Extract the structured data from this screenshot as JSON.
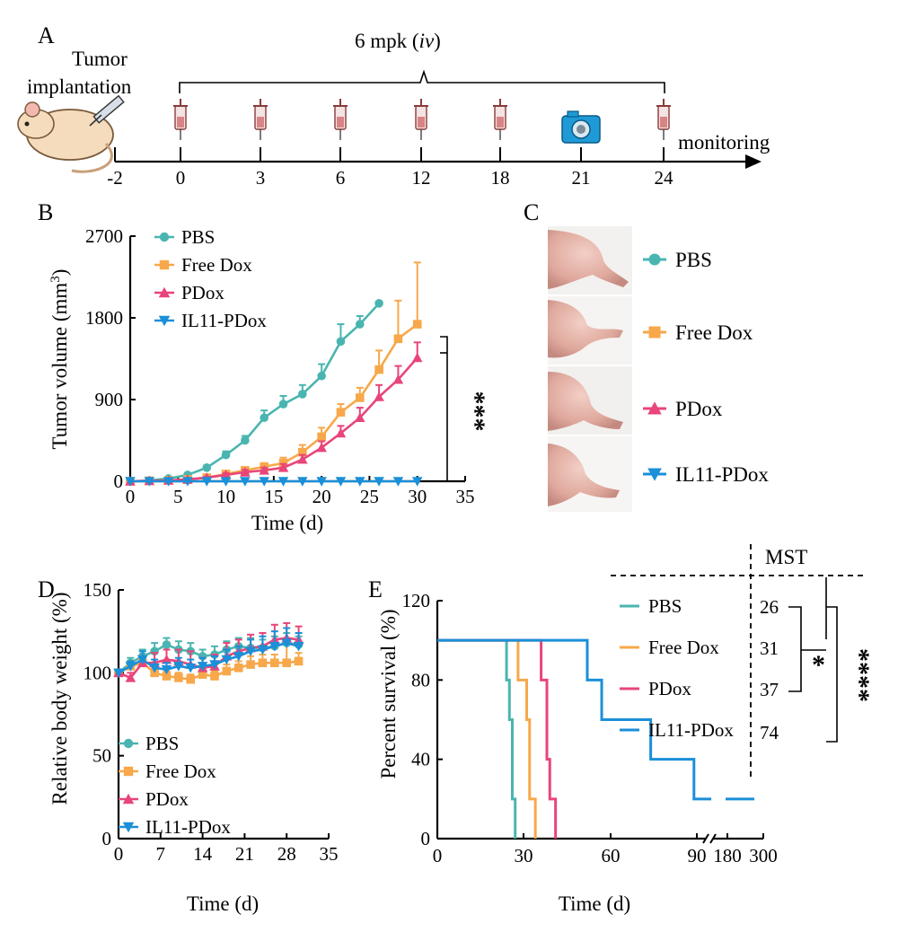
{
  "colors": {
    "PBS": "#4ab5b0",
    "Free Dox": "#f7a84a",
    "PDox": "#e8457a",
    "IL11-PDox": "#1b8fd8"
  },
  "icons": [
    "mouse-illustration",
    "syringe-icon",
    "camera-icon",
    "tumor-photo"
  ],
  "panel_a": {
    "letter": "A",
    "left_label_1": "Tumor",
    "left_label_2": "implantation",
    "dose_label_prefix": "6 mpk (",
    "dose_label_route": "iv",
    "dose_label_suffix": ")",
    "end_label": "monitoring",
    "timeline_days": [
      "-2",
      "0",
      "3",
      "6",
      "12",
      "18",
      "21",
      "24"
    ],
    "injection_days": [
      "0",
      "3",
      "6",
      "12",
      "18",
      "24"
    ],
    "imaging_day": "21"
  },
  "panel_c": {
    "letter": "C",
    "legend": [
      "PBS",
      "Free Dox",
      "PDox",
      "IL11-PDox"
    ]
  },
  "significance": {
    "panel_b": "***",
    "panel_e_left": "*",
    "panel_e_right": "****"
  },
  "chart_data": [
    {
      "panel": "B",
      "type": "line",
      "xlabel": "Time (d)",
      "ylabel": "Tumor volume (mm3)",
      "ylabel_main": "Tumor volume (mm",
      "ylabel_sup": "3",
      "ylabel_end": ")",
      "xlim": [
        0,
        35
      ],
      "ylim": [
        0,
        2700
      ],
      "xticks": [
        0,
        5,
        10,
        15,
        20,
        25,
        30,
        35
      ],
      "yticks": [
        0,
        900,
        1800,
        2700
      ],
      "legend_position": "top-left",
      "series": [
        {
          "name": "PBS",
          "marker": "circle",
          "x": [
            0,
            2,
            4,
            6,
            8,
            10,
            12,
            14,
            16,
            18,
            20,
            22,
            24,
            26
          ],
          "y": [
            0,
            10,
            30,
            70,
            150,
            290,
            450,
            700,
            850,
            960,
            1160,
            1540,
            1730,
            1960
          ],
          "err": [
            0,
            5,
            10,
            15,
            25,
            40,
            50,
            80,
            90,
            100,
            130,
            190,
            90,
            0
          ]
        },
        {
          "name": "Free Dox",
          "marker": "square",
          "x": [
            0,
            2,
            4,
            6,
            8,
            10,
            12,
            14,
            16,
            18,
            20,
            22,
            24,
            26,
            28,
            30
          ],
          "y": [
            0,
            5,
            10,
            20,
            40,
            80,
            120,
            160,
            200,
            320,
            490,
            760,
            920,
            1230,
            1570,
            1730
          ],
          "err": [
            0,
            5,
            5,
            10,
            15,
            25,
            30,
            40,
            60,
            80,
            100,
            90,
            110,
            210,
            420,
            680
          ]
        },
        {
          "name": "PDox",
          "marker": "triangle",
          "x": [
            0,
            2,
            4,
            6,
            8,
            10,
            12,
            14,
            16,
            18,
            20,
            22,
            24,
            26,
            28,
            30
          ],
          "y": [
            0,
            5,
            10,
            20,
            40,
            70,
            100,
            120,
            150,
            240,
            370,
            530,
            700,
            930,
            1120,
            1360
          ],
          "err": [
            0,
            5,
            5,
            10,
            10,
            20,
            25,
            30,
            40,
            50,
            70,
            80,
            110,
            130,
            150,
            170
          ]
        },
        {
          "name": "IL11-PDox",
          "marker": "triangle-down",
          "x": [
            0,
            2,
            4,
            6,
            8,
            10,
            12,
            14,
            16,
            18,
            20,
            22,
            24,
            26,
            28,
            30
          ],
          "y": [
            0,
            0,
            0,
            0,
            0,
            0,
            0,
            0,
            0,
            0,
            0,
            0,
            0,
            0,
            0,
            0
          ],
          "err": [
            0,
            0,
            0,
            0,
            0,
            0,
            0,
            0,
            0,
            0,
            0,
            0,
            0,
            0,
            0,
            0
          ]
        }
      ]
    },
    {
      "panel": "D",
      "type": "line",
      "xlabel": "Time (d)",
      "ylabel": "Relative body weight (%)",
      "xlim": [
        0,
        35
      ],
      "ylim": [
        0,
        150
      ],
      "xticks": [
        0,
        7,
        14,
        21,
        28,
        35
      ],
      "yticks": [
        0,
        50,
        100,
        150
      ],
      "legend_position": "bottom-left",
      "series": [
        {
          "name": "PBS",
          "marker": "circle",
          "x": [
            0,
            2,
            4,
            6,
            8,
            10,
            12,
            14,
            16,
            18,
            20,
            22,
            24,
            26,
            28,
            30
          ],
          "y": [
            100,
            106,
            110,
            113,
            117,
            114,
            113,
            110,
            111,
            114,
            116,
            115,
            115,
            116,
            118,
            117
          ],
          "err": [
            0,
            3,
            4,
            5,
            4,
            5,
            5,
            4,
            5,
            5,
            5,
            6,
            5,
            6,
            6,
            5
          ]
        },
        {
          "name": "Free Dox",
          "marker": "square",
          "x": [
            0,
            2,
            4,
            6,
            8,
            10,
            12,
            14,
            16,
            18,
            20,
            22,
            24,
            26,
            28,
            30
          ],
          "y": [
            100,
            104,
            106,
            100,
            98,
            97,
            96,
            99,
            98,
            101,
            103,
            105,
            106,
            106,
            106,
            107
          ],
          "err": [
            0,
            3,
            4,
            3,
            3,
            3,
            3,
            4,
            3,
            4,
            4,
            5,
            5,
            5,
            12,
            5
          ]
        },
        {
          "name": "PDox",
          "marker": "triangle",
          "x": [
            0,
            2,
            4,
            6,
            8,
            10,
            12,
            14,
            16,
            18,
            20,
            22,
            24,
            26,
            28,
            30
          ],
          "y": [
            100,
            97,
            106,
            106,
            108,
            107,
            105,
            103,
            104,
            110,
            113,
            115,
            116,
            120,
            121,
            120
          ],
          "err": [
            0,
            3,
            4,
            6,
            6,
            7,
            8,
            6,
            7,
            8,
            7,
            8,
            8,
            9,
            9,
            8
          ]
        },
        {
          "name": "IL11-PDox",
          "marker": "triangle-down",
          "x": [
            0,
            2,
            4,
            6,
            8,
            10,
            12,
            14,
            16,
            18,
            20,
            22,
            24,
            26,
            28,
            30
          ],
          "y": [
            100,
            104,
            108,
            103,
            102,
            104,
            103,
            104,
            105,
            108,
            110,
            113,
            114,
            116,
            118,
            116
          ],
          "err": [
            0,
            3,
            5,
            5,
            4,
            5,
            5,
            5,
            5,
            6,
            6,
            7,
            8,
            9,
            9,
            8
          ]
        }
      ]
    },
    {
      "panel": "E",
      "type": "line",
      "subtype": "kaplan-meier",
      "xlabel": "Time (d)",
      "ylabel": "Percent survival (%)",
      "xlim": [
        0,
        300
      ],
      "x_axis_break": [
        90,
        180
      ],
      "ylim": [
        0,
        120
      ],
      "xticks": [
        0,
        30,
        60,
        90,
        180,
        300
      ],
      "xtick_labels": [
        "0",
        "30",
        "60",
        "90",
        "180",
        "300"
      ],
      "yticks": [
        0,
        40,
        80,
        120
      ],
      "legend_position": "top-right",
      "table_header": "MST",
      "mst_days": {
        "PBS": 26,
        "Free Dox": 31,
        "PDox": 37,
        "IL11-PDox": 74
      },
      "series": [
        {
          "name": "PBS",
          "mst": "26",
          "steps": [
            [
              0,
              100
            ],
            [
              24,
              100
            ],
            [
              24,
              80
            ],
            [
              25,
              80
            ],
            [
              25,
              60
            ],
            [
              26,
              60
            ],
            [
              26,
              20
            ],
            [
              27,
              20
            ],
            [
              27,
              0
            ]
          ]
        },
        {
          "name": "Free Dox",
          "mst": "31",
          "steps": [
            [
              0,
              100
            ],
            [
              28,
              100
            ],
            [
              28,
              80
            ],
            [
              31,
              80
            ],
            [
              31,
              60
            ],
            [
              32,
              60
            ],
            [
              32,
              20
            ],
            [
              34,
              20
            ],
            [
              34,
              0
            ]
          ]
        },
        {
          "name": "PDox",
          "mst": "37",
          "steps": [
            [
              0,
              100
            ],
            [
              36,
              100
            ],
            [
              36,
              80
            ],
            [
              38,
              80
            ],
            [
              38,
              40
            ],
            [
              39,
              40
            ],
            [
              39,
              20
            ],
            [
              41,
              20
            ],
            [
              41,
              0
            ]
          ]
        },
        {
          "name": "IL11-PDox",
          "mst": "74",
          "steps": [
            [
              0,
              100
            ],
            [
              52,
              100
            ],
            [
              52,
              80
            ],
            [
              57,
              80
            ],
            [
              57,
              60
            ],
            [
              74,
              60
            ],
            [
              74,
              40
            ],
            [
              89,
              40
            ],
            [
              89,
              20
            ],
            [
              95,
              20
            ],
            [
              95,
              20
            ],
            [
              300,
              20
            ]
          ]
        }
      ]
    }
  ]
}
